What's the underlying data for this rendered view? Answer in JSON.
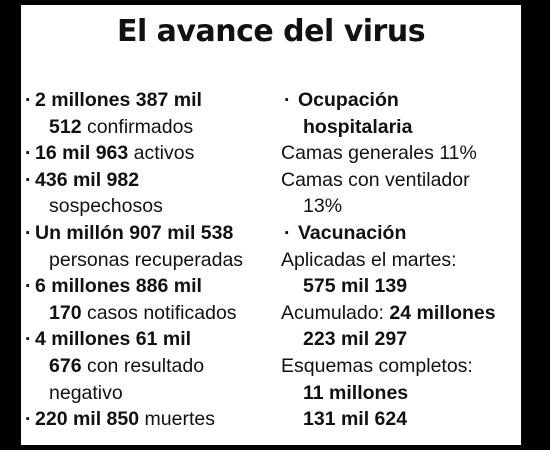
{
  "title": "El avance del virus",
  "left": {
    "items": [
      {
        "l1_bold": "2 millones 387 mil",
        "l2_bold": "512",
        "l2_rest": " confirmados"
      },
      {
        "l1_bold": "16 mil 963",
        "l1_rest": " activos"
      },
      {
        "l1_bold": "436 mil 982",
        "l2_rest": "sospechosos"
      },
      {
        "l1_bold": "Un millón 907 mil 538",
        "l2_rest": "personas recuperadas"
      },
      {
        "l1_bold": "6 millones 886 mil",
        "l2_bold": "170",
        "l2_rest": " casos notificados"
      },
      {
        "l1_bold": "4 millones 61 mil",
        "l2_bold": "676",
        "l2_rest": " con resultado",
        "l3_rest": "negativo"
      },
      {
        "l1_bold": "220 mil 850",
        "l1_rest": " muertes"
      }
    ]
  },
  "right": {
    "ocupacion": {
      "heading_l1": "Ocupación",
      "heading_l2": "hospitalaria",
      "camas_generales": "Camas generales 11%",
      "camas_ventilador_l1": "Camas con ventilador",
      "camas_ventilador_l2": "13%"
    },
    "vacunacion": {
      "heading": "Vacunación",
      "aplicadas_label": "Aplicadas el martes:",
      "aplicadas_value": "575 mil 139",
      "acumulado_label": "Acumulado: ",
      "acumulado_value_l1": "24 millones",
      "acumulado_value_l2": "223 mil 297",
      "esquemas_label": "Esquemas completos:",
      "esquemas_value_l1": "11 millones",
      "esquemas_value_l2": "131 mil 624"
    }
  }
}
